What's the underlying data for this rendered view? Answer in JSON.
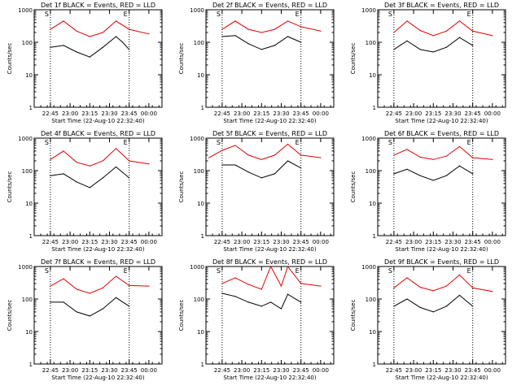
{
  "colors": {
    "events": "#000000",
    "lld": "#e00000",
    "axis": "#000000",
    "background": "#ffffff"
  },
  "shared": {
    "ylabel": "Counts/sec",
    "xlabel": "Start Time (22-Aug-10 22:32:40)",
    "x_ticks": [
      "22:45",
      "23:00",
      "23:15",
      "23:30",
      "23:45",
      "00:00"
    ],
    "y_ticks": [
      "1",
      "10",
      "100",
      "1000"
    ],
    "marker_start": "S",
    "marker_end": "E"
  },
  "chart_data": [
    {
      "type": "line",
      "title": "Det 1f BLACK = Events, RED = LLD",
      "yscale": "log",
      "ylim": [
        1,
        1000
      ],
      "x_range": [
        "22:32:40",
        "00:10"
      ],
      "dotted_lines_at": [
        "22:45",
        "23:45"
      ],
      "series": [
        {
          "name": "Events",
          "x": [
            "22:45",
            "22:55",
            "23:05",
            "23:15",
            "23:25",
            "23:35",
            "23:40",
            "23:45"
          ],
          "values": [
            70,
            80,
            50,
            35,
            70,
            150,
            100,
            60
          ]
        },
        {
          "name": "LLD",
          "x": [
            "22:45",
            "22:55",
            "23:05",
            "23:15",
            "23:25",
            "23:35",
            "23:45",
            "00:00"
          ],
          "values": [
            250,
            450,
            220,
            150,
            200,
            450,
            250,
            180
          ]
        }
      ]
    },
    {
      "type": "line",
      "title": "Det 2f BLACK = Events, RED = LLD",
      "yscale": "log",
      "ylim": [
        1,
        1000
      ],
      "x_range": [
        "22:32:40",
        "00:10"
      ],
      "dotted_lines_at": [
        "22:45",
        "23:45"
      ],
      "series": [
        {
          "name": "Events",
          "x": [
            "22:45",
            "22:55",
            "23:05",
            "23:15",
            "23:25",
            "23:35",
            "23:45"
          ],
          "values": [
            150,
            160,
            90,
            60,
            80,
            150,
            100
          ]
        },
        {
          "name": "LLD",
          "x": [
            "22:45",
            "22:55",
            "23:05",
            "23:15",
            "23:25",
            "23:35",
            "23:45",
            "00:00"
          ],
          "values": [
            250,
            450,
            250,
            200,
            250,
            450,
            300,
            220
          ]
        }
      ]
    },
    {
      "type": "line",
      "title": "Det 3f BLACK = Events, RED = LLD",
      "yscale": "log",
      "ylim": [
        1,
        1000
      ],
      "x_range": [
        "22:32:40",
        "00:10"
      ],
      "dotted_lines_at": [
        "22:45",
        "23:45"
      ],
      "series": [
        {
          "name": "Events",
          "x": [
            "22:45",
            "22:55",
            "23:05",
            "23:15",
            "23:25",
            "23:35",
            "23:45"
          ],
          "values": [
            60,
            110,
            60,
            50,
            70,
            140,
            80
          ]
        },
        {
          "name": "LLD",
          "x": [
            "22:45",
            "22:55",
            "23:05",
            "23:15",
            "23:25",
            "23:35",
            "23:45",
            "00:00"
          ],
          "values": [
            200,
            450,
            230,
            160,
            220,
            450,
            220,
            160
          ]
        }
      ]
    },
    {
      "type": "line",
      "title": "Det 4f BLACK = Events, RED = LLD",
      "yscale": "log",
      "ylim": [
        1,
        1000
      ],
      "x_range": [
        "22:32:40",
        "00:10"
      ],
      "dotted_lines_at": [
        "22:45",
        "23:45"
      ],
      "series": [
        {
          "name": "Events",
          "x": [
            "22:45",
            "22:55",
            "23:05",
            "23:15",
            "23:25",
            "23:35",
            "23:45"
          ],
          "values": [
            70,
            80,
            45,
            30,
            60,
            130,
            60
          ]
        },
        {
          "name": "LLD",
          "x": [
            "22:45",
            "22:55",
            "23:05",
            "23:15",
            "23:25",
            "23:35",
            "23:45",
            "00:00"
          ],
          "values": [
            220,
            400,
            180,
            140,
            200,
            480,
            200,
            160
          ]
        }
      ]
    },
    {
      "type": "line",
      "title": "Det 5f BLACK = Events, RED = LLD",
      "yscale": "log",
      "ylim": [
        1,
        1000
      ],
      "x_range": [
        "22:32:40",
        "00:10"
      ],
      "dotted_lines_at": [
        "22:45",
        "23:45"
      ],
      "series": [
        {
          "name": "Events",
          "x": [
            "22:45",
            "22:55",
            "23:05",
            "23:15",
            "23:25",
            "23:35",
            "23:45"
          ],
          "values": [
            150,
            150,
            90,
            60,
            80,
            200,
            120
          ]
        },
        {
          "name": "LLD",
          "x": [
            "22:35",
            "22:45",
            "22:55",
            "23:05",
            "23:15",
            "23:25",
            "23:35",
            "23:45",
            "00:00"
          ],
          "values": [
            250,
            420,
            600,
            300,
            220,
            300,
            650,
            300,
            250
          ]
        }
      ]
    },
    {
      "type": "line",
      "title": "Det 6f BLACK = Events, RED = LLD",
      "yscale": "log",
      "ylim": [
        1,
        1000
      ],
      "x_range": [
        "22:32:40",
        "00:10"
      ],
      "dotted_lines_at": [
        "22:45",
        "23:45"
      ],
      "series": [
        {
          "name": "Events",
          "x": [
            "22:45",
            "22:55",
            "23:05",
            "23:15",
            "23:25",
            "23:35",
            "23:45"
          ],
          "values": [
            80,
            110,
            70,
            50,
            70,
            140,
            80
          ]
        },
        {
          "name": "LLD",
          "x": [
            "22:45",
            "22:55",
            "23:05",
            "23:15",
            "23:25",
            "23:35",
            "23:45",
            "00:00"
          ],
          "values": [
            300,
            450,
            260,
            220,
            280,
            550,
            250,
            220
          ]
        }
      ]
    },
    {
      "type": "line",
      "title": "Det 7f BLACK = Events, RED = LLD",
      "yscale": "log",
      "ylim": [
        1,
        1000
      ],
      "x_range": [
        "22:32:40",
        "00:10"
      ],
      "dotted_lines_at": [
        "22:45",
        "23:45"
      ],
      "series": [
        {
          "name": "Events",
          "x": [
            "22:45",
            "22:55",
            "23:05",
            "23:15",
            "23:25",
            "23:35",
            "23:45"
          ],
          "values": [
            80,
            80,
            40,
            30,
            50,
            110,
            60
          ]
        },
        {
          "name": "LLD",
          "x": [
            "22:45",
            "22:55",
            "23:05",
            "23:15",
            "23:25",
            "23:35",
            "23:45",
            "00:00"
          ],
          "values": [
            250,
            420,
            200,
            150,
            220,
            500,
            260,
            250
          ]
        }
      ]
    },
    {
      "type": "line",
      "title": "Det 8f BLACK = Events, RED = LLD",
      "yscale": "log",
      "ylim": [
        1,
        1000
      ],
      "x_range": [
        "22:32:40",
        "00:10"
      ],
      "dotted_lines_at": [
        "22:45",
        "23:45"
      ],
      "series": [
        {
          "name": "Events",
          "x": [
            "22:45",
            "22:55",
            "23:05",
            "23:15",
            "23:22",
            "23:30",
            "23:35",
            "23:45"
          ],
          "values": [
            150,
            120,
            80,
            60,
            80,
            50,
            140,
            80
          ]
        },
        {
          "name": "LLD",
          "x": [
            "22:45",
            "22:55",
            "23:05",
            "23:15",
            "23:22",
            "23:30",
            "23:35",
            "23:45",
            "00:00"
          ],
          "values": [
            300,
            450,
            280,
            200,
            1000,
            250,
            1000,
            300,
            250
          ]
        }
      ]
    },
    {
      "type": "line",
      "title": "Det 9f BLACK = Events, RED = LLD",
      "yscale": "log",
      "ylim": [
        1,
        1000
      ],
      "x_range": [
        "22:32:40",
        "00:10"
      ],
      "dotted_lines_at": [
        "22:45",
        "23:45"
      ],
      "series": [
        {
          "name": "Events",
          "x": [
            "22:45",
            "22:55",
            "23:05",
            "23:15",
            "23:25",
            "23:35",
            "23:45"
          ],
          "values": [
            60,
            100,
            55,
            40,
            60,
            130,
            60
          ]
        },
        {
          "name": "LLD",
          "x": [
            "22:45",
            "22:55",
            "23:05",
            "23:15",
            "23:25",
            "23:35",
            "23:45",
            "00:00"
          ],
          "values": [
            220,
            450,
            230,
            180,
            250,
            550,
            220,
            170
          ]
        }
      ]
    }
  ]
}
